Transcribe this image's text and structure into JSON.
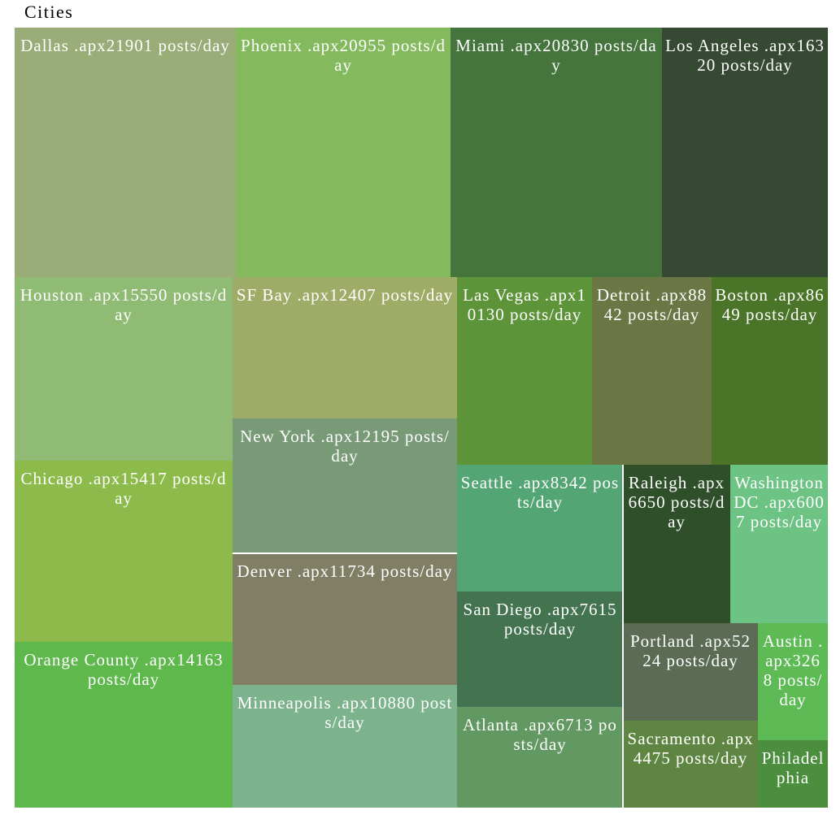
{
  "chart_data": {
    "type": "treemap",
    "title": "Cities",
    "unit_label": "posts/day",
    "items": [
      {
        "name": "Dallas",
        "value_text": ".apx21901",
        "value": 21901,
        "color": "#9aad78"
      },
      {
        "name": "Phoenix",
        "value_text": ".apx20955",
        "value": 20955,
        "color": "#84b95d"
      },
      {
        "name": "Miami",
        "value_text": ".apx20830",
        "value": 20830,
        "color": "#45743c"
      },
      {
        "name": "Los Angeles",
        "value_text": ".apx16320",
        "value": 16320,
        "color": "#364a33"
      },
      {
        "name": "Houston",
        "value_text": ".apx15550",
        "value": 15550,
        "color": "#8fbb75"
      },
      {
        "name": "SF Bay",
        "value_text": ".apx12407",
        "value": 12407,
        "color": "#9eac67"
      },
      {
        "name": "Las Vegas",
        "value_text": ".apx10130",
        "value": 10130,
        "color": "#5d943a"
      },
      {
        "name": "Detroit",
        "value_text": ".apx8842",
        "value": 8842,
        "color": "#6a7745"
      },
      {
        "name": "Boston",
        "value_text": ".apx8649",
        "value": 8649,
        "color": "#4a7529"
      },
      {
        "name": "Chicago",
        "value_text": ".apx15417",
        "value": 15417,
        "color": "#8dbb4b"
      },
      {
        "name": "New York",
        "value_text": ".apx12195",
        "value": 12195,
        "color": "#789a76"
      },
      {
        "name": "Seattle",
        "value_text": ".apx8342",
        "value": 8342,
        "color": "#53a673"
      },
      {
        "name": "Raleigh",
        "value_text": ".apx6650",
        "value": 6650,
        "color": "#2f4f2a"
      },
      {
        "name": "Washington DC",
        "value_text": ".apx6007",
        "value": 6007,
        "color": "#6dc383"
      },
      {
        "name": "Denver",
        "value_text": ".apx11734",
        "value": 11734,
        "color": "#807f66"
      },
      {
        "name": "San Diego",
        "value_text": ".apx7615",
        "value": 7615,
        "color": "#44744f"
      },
      {
        "name": "Portland",
        "value_text": ".apx5224",
        "value": 5224,
        "color": "#5b6b54"
      },
      {
        "name": "Austin",
        "value_text": ".apx3268",
        "value": 3268,
        "color": "#5dba55"
      },
      {
        "name": "Orange County",
        "value_text": ".apx14163",
        "value": 14163,
        "color": "#5eb84c"
      },
      {
        "name": "Minneapolis",
        "value_text": ".apx10880",
        "value": 10880,
        "color": "#7db38c"
      },
      {
        "name": "Atlanta",
        "value_text": ".apx6713",
        "value": 6713,
        "color": "#629862"
      },
      {
        "name": "Sacramento",
        "value_text": ".apx4475",
        "value": 4475,
        "color": "#5e8642"
      },
      {
        "name": "Philadelphia",
        "value_text": "",
        "value": null,
        "color": "#4b8f3e"
      }
    ]
  }
}
